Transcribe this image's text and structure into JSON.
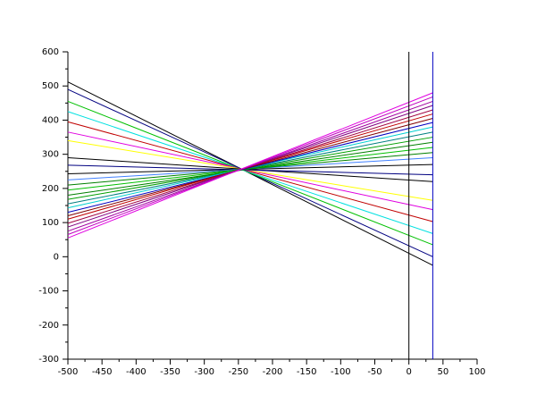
{
  "chart_data": {
    "type": "line",
    "x": [
      -500,
      35
    ],
    "series": [
      {
        "color": "#000000",
        "values": [
          512,
          -25
        ]
      },
      {
        "color": "#000080",
        "values": [
          490,
          0
        ]
      },
      {
        "color": "#00c000",
        "values": [
          455,
          35
        ]
      },
      {
        "color": "#00e0e0",
        "values": [
          425,
          68
        ]
      },
      {
        "color": "#c00000",
        "values": [
          395,
          103
        ]
      },
      {
        "color": "#e000e0",
        "values": [
          365,
          138
        ]
      },
      {
        "color": "#ffff00",
        "values": [
          340,
          165
        ]
      },
      {
        "color": "#000000",
        "values": [
          290,
          220
        ]
      },
      {
        "color": "#000080",
        "values": [
          268,
          240
        ]
      },
      {
        "color": "#000000",
        "values": [
          243,
          270
        ]
      },
      {
        "color": "#4080ff",
        "values": [
          225,
          290
        ]
      },
      {
        "color": "#008000",
        "values": [
          210,
          305
        ]
      },
      {
        "color": "#00c000",
        "values": [
          195,
          320
        ]
      },
      {
        "color": "#008000",
        "values": [
          180,
          335
        ]
      },
      {
        "color": "#00a000",
        "values": [
          168,
          350
        ]
      },
      {
        "color": "#008080",
        "values": [
          155,
          365
        ]
      },
      {
        "color": "#00d0d0",
        "values": [
          143,
          380
        ]
      },
      {
        "color": "#0000c0",
        "values": [
          130,
          393
        ]
      },
      {
        "color": "#800000",
        "values": [
          120,
          405
        ]
      },
      {
        "color": "#c00000",
        "values": [
          110,
          418
        ]
      },
      {
        "color": "#a00040",
        "values": [
          98,
          430
        ]
      },
      {
        "color": "#800080",
        "values": [
          87,
          443
        ]
      },
      {
        "color": "#a000a0",
        "values": [
          75,
          455
        ]
      },
      {
        "color": "#c000c0",
        "values": [
          65,
          468
        ]
      },
      {
        "color": "#e000e0",
        "values": [
          55,
          480
        ]
      }
    ],
    "vlines": [
      {
        "x": 0,
        "color": "#000000"
      },
      {
        "x": 35,
        "color": "#0000c0"
      }
    ],
    "xlim": [
      -500,
      100
    ],
    "xticks": [
      -500,
      -450,
      -400,
      -350,
      -300,
      -250,
      -200,
      -150,
      -100,
      -50,
      0,
      50,
      100
    ],
    "ylim": [
      -300,
      600
    ],
    "yticks": [
      -300,
      -200,
      -100,
      0,
      100,
      200,
      300,
      400,
      500,
      600
    ]
  }
}
